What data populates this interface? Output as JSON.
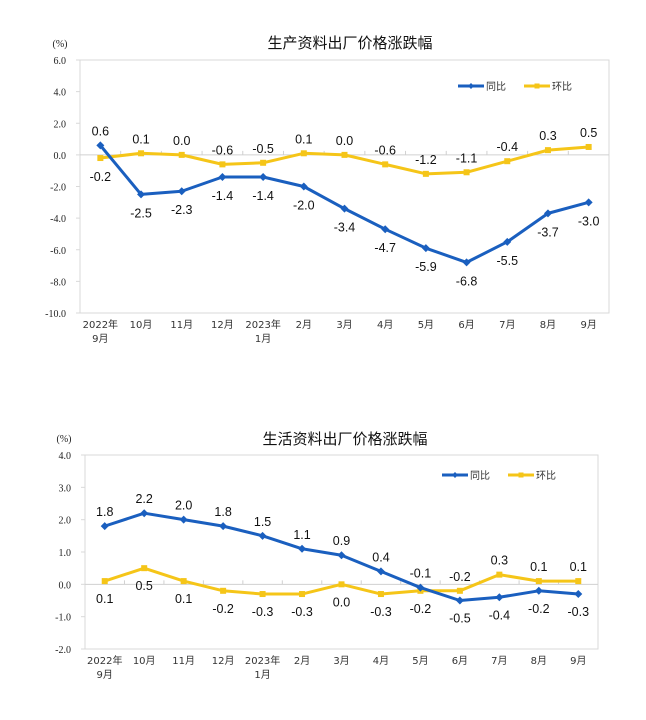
{
  "chart_data": [
    {
      "type": "line",
      "title": "生产资料出厂价格涨跌幅",
      "ylabel": "(%)",
      "xlabel": "",
      "categories": [
        "2022年\n9月",
        "10月",
        "11月",
        "12月",
        "2023年\n1月",
        "2月",
        "3月",
        "4月",
        "5月",
        "6月",
        "7月",
        "8月",
        "9月"
      ],
      "ylim": [
        -10.0,
        6.0
      ],
      "yticks": [
        6.0,
        4.0,
        2.0,
        0.0,
        -2.0,
        -4.0,
        -6.0,
        -8.0,
        -10.0
      ],
      "ytick_labels": [
        "6.0",
        "4.0",
        "2.0",
        "0.0",
        "-2.0",
        "-4.0",
        "-6.0",
        "-8.0",
        "-10.0"
      ],
      "grid": false,
      "legend": "top-right",
      "series": [
        {
          "name": "同比",
          "color": "#1a5fbf",
          "marker": "diamond",
          "values": [
            0.6,
            -2.5,
            -2.3,
            -1.4,
            -1.4,
            -2.0,
            -3.4,
            -4.7,
            -5.9,
            -6.8,
            -5.5,
            -3.7,
            -3.0
          ],
          "labels": [
            "0.6",
            "-2.5",
            "-2.3",
            "-1.4",
            "-1.4",
            "-2.0",
            "-3.4",
            "-4.7",
            "-5.9",
            "-6.8",
            "-5.5",
            "-3.7",
            "-3.0"
          ],
          "label_pos": [
            "above",
            "below",
            "below",
            "below",
            "below",
            "below",
            "below",
            "below",
            "below",
            "below",
            "below",
            "below",
            "below"
          ]
        },
        {
          "name": "环比",
          "color": "#f5c518",
          "marker": "square",
          "values": [
            -0.2,
            0.1,
            0.0,
            -0.6,
            -0.5,
            0.1,
            0.0,
            -0.6,
            -1.2,
            -1.1,
            -0.4,
            0.3,
            0.5
          ],
          "labels": [
            "-0.2",
            "0.1",
            "0.0",
            "-0.6",
            "-0.5",
            "0.1",
            "0.0",
            "-0.6",
            "-1.2",
            "-1.1",
            "-0.4",
            "0.3",
            "0.5"
          ],
          "label_pos": [
            "below",
            "above",
            "above",
            "above",
            "above",
            "above",
            "above",
            "above",
            "above",
            "above",
            "above",
            "above",
            "above"
          ]
        }
      ]
    },
    {
      "type": "line",
      "title": "生活资料出厂价格涨跌幅",
      "ylabel": "(%)",
      "xlabel": "",
      "categories": [
        "2022年\n9月",
        "10月",
        "11月",
        "12月",
        "2023年\n1月",
        "2月",
        "3月",
        "4月",
        "5月",
        "6月",
        "7月",
        "8月",
        "9月"
      ],
      "ylim": [
        -2.0,
        4.0
      ],
      "yticks": [
        4.0,
        3.0,
        2.0,
        1.0,
        0.0,
        -1.0,
        -2.0
      ],
      "ytick_labels": [
        "4.0",
        "3.0",
        "2.0",
        "1.0",
        "0.0",
        "-1.0",
        "-2.0"
      ],
      "grid": false,
      "legend": "top-right",
      "series": [
        {
          "name": "同比",
          "color": "#1a5fbf",
          "marker": "diamond",
          "values": [
            1.8,
            2.2,
            2.0,
            1.8,
            1.5,
            1.1,
            0.9,
            0.4,
            -0.1,
            -0.5,
            -0.4,
            -0.2,
            -0.3
          ],
          "labels": [
            "1.8",
            "2.2",
            "2.0",
            "1.8",
            "1.5",
            "1.1",
            "0.9",
            "0.4",
            "-0.1",
            "-0.5",
            "-0.4",
            "-0.2",
            "-0.3"
          ],
          "label_pos": [
            "above",
            "above",
            "above",
            "above",
            "above",
            "above",
            "above",
            "above",
            "above",
            "below",
            "below",
            "below",
            "below"
          ]
        },
        {
          "name": "环比",
          "color": "#f5c518",
          "marker": "square",
          "values": [
            0.1,
            0.5,
            0.1,
            -0.2,
            -0.3,
            -0.3,
            0.0,
            -0.3,
            -0.2,
            -0.2,
            0.3,
            0.1,
            0.1
          ],
          "labels": [
            "0.1",
            "0.5",
            "0.1",
            "-0.2",
            "-0.3",
            "-0.3",
            "0.0",
            "-0.3",
            "-0.2",
            "-0.2",
            "0.3",
            "0.1",
            "0.1"
          ],
          "label_pos": [
            "below",
            "below",
            "below",
            "below",
            "below",
            "below",
            "below",
            "below",
            "below",
            "above",
            "above",
            "above",
            "above"
          ]
        }
      ]
    }
  ]
}
